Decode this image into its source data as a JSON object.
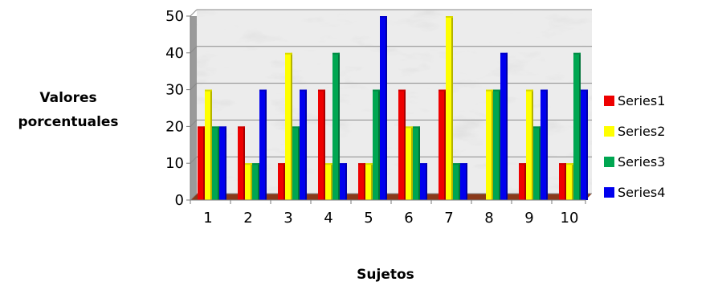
{
  "chart_data": {
    "type": "bar",
    "xlabel": "Sujetos",
    "ylabel": "Valores porcentuales",
    "categories": [
      "1",
      "2",
      "3",
      "4",
      "5",
      "6",
      "7",
      "8",
      "9",
      "10"
    ],
    "y_ticks": [
      "0",
      "10",
      "20",
      "30",
      "40",
      "50"
    ],
    "ylim": [
      0,
      50
    ],
    "grid": true,
    "legend_position": "right",
    "series": [
      {
        "name": "Series1",
        "color": "#ee0000",
        "values": [
          20,
          20,
          10,
          30,
          10,
          30,
          30,
          0,
          10,
          10
        ]
      },
      {
        "name": "Series2",
        "color": "#ffff00",
        "values": [
          30,
          10,
          40,
          10,
          10,
          20,
          50,
          30,
          30,
          10
        ]
      },
      {
        "name": "Series3",
        "color": "#00a651",
        "values": [
          20,
          10,
          20,
          40,
          30,
          20,
          10,
          30,
          20,
          40
        ]
      },
      {
        "name": "Series4",
        "color": "#0000ee",
        "values": [
          20,
          30,
          30,
          10,
          50,
          10,
          10,
          40,
          30,
          30
        ]
      }
    ]
  }
}
